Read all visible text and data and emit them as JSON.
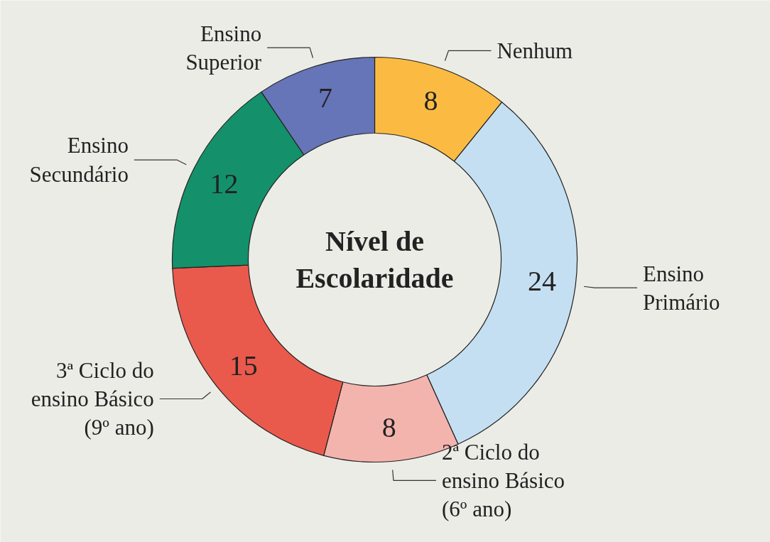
{
  "chart_data": {
    "type": "donut",
    "title": "Nível de\nEscolaridade",
    "categories": [
      "Nenhum",
      "Ensino\nPrimário",
      "2ª Ciclo do\nensino Básico\n(6º ano)",
      "3ª Ciclo do\nensino Básico\n(9º ano)",
      "Ensino\nSecundário",
      "Ensino\nSuperior"
    ],
    "values": [
      8,
      24,
      8,
      15,
      12,
      7
    ],
    "colors": [
      "#fbbb43",
      "#c5dff2",
      "#f4b4ae",
      "#e95a4d",
      "#14916a",
      "#6674b8"
    ],
    "data_labels": true
  }
}
